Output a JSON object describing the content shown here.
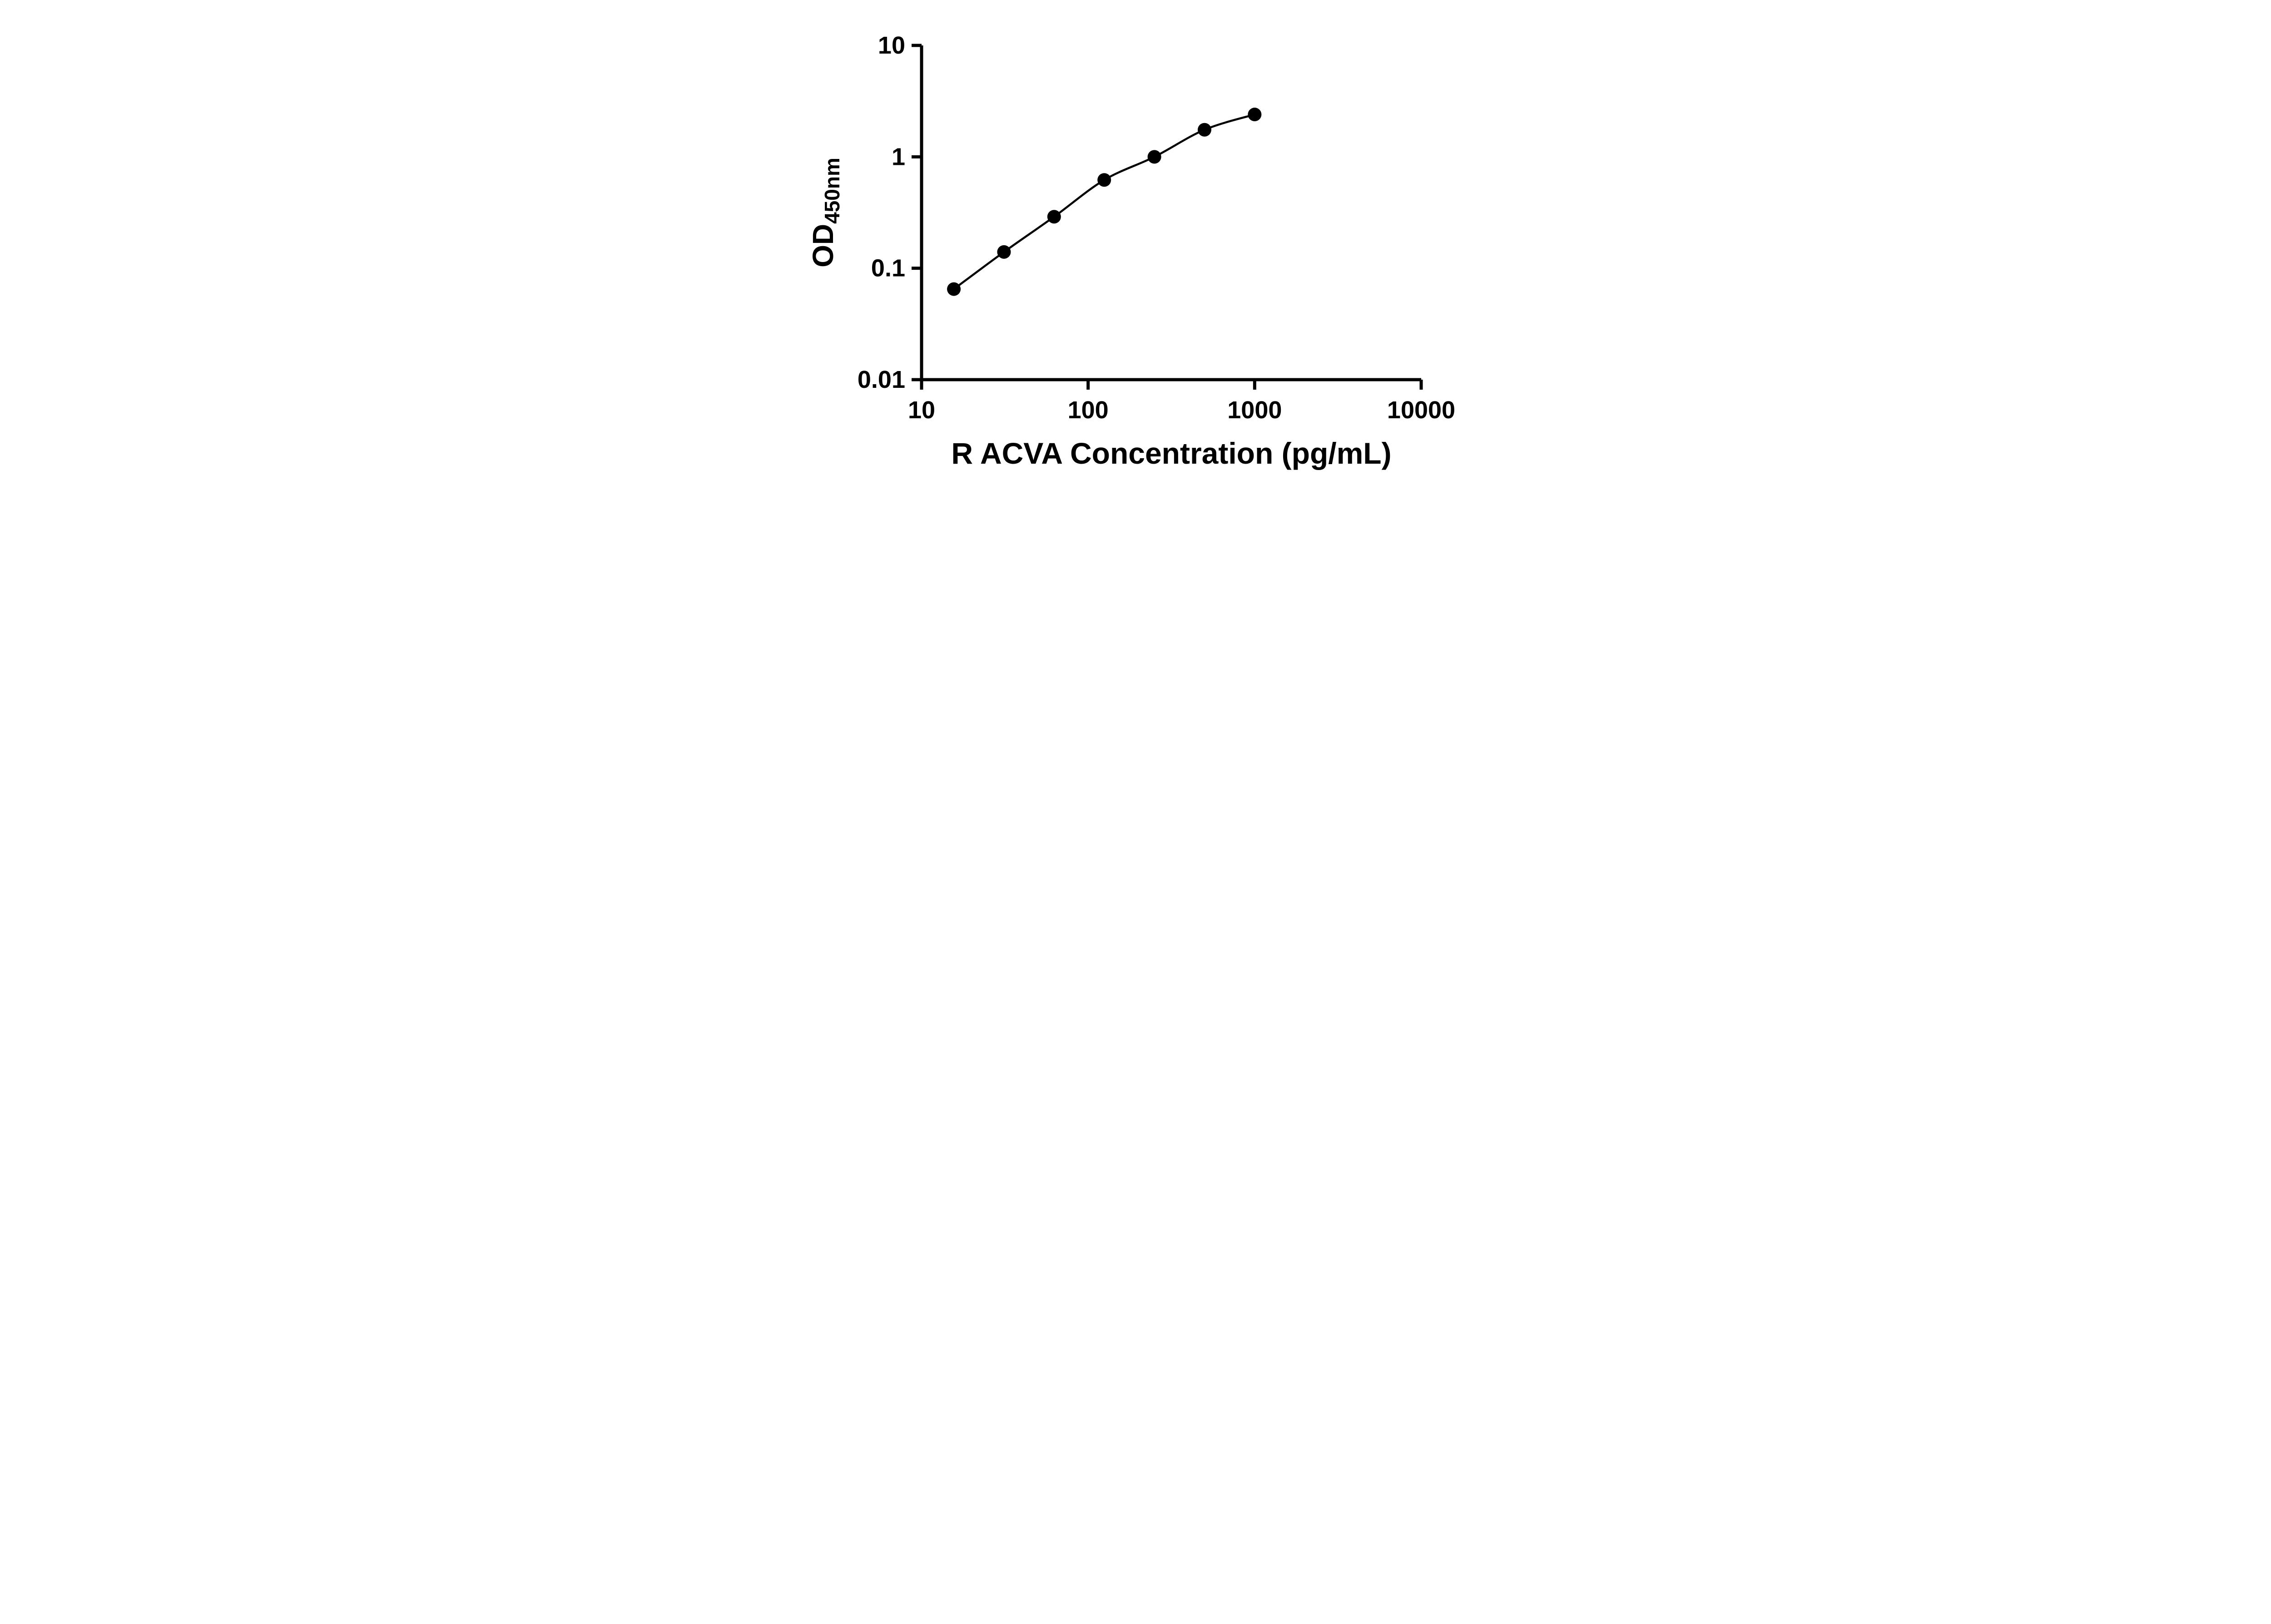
{
  "chart_data": {
    "type": "scatter",
    "subtype": "log-log standard curve with smooth connecting line",
    "title": "",
    "xlabel": "R ACVA Concentration (pg/mL)",
    "ylabel_main": "OD",
    "ylabel_sub": "450nm",
    "xscale": "log",
    "yscale": "log",
    "xlim": [
      10,
      10000
    ],
    "ylim": [
      0.01,
      10
    ],
    "x_ticks": [
      10,
      100,
      1000,
      10000
    ],
    "x_tick_labels": [
      "10",
      "100",
      "1000",
      "10000"
    ],
    "y_ticks": [
      0.01,
      0.1,
      1,
      10
    ],
    "y_tick_labels": [
      "0.01",
      "0.1",
      "1",
      "10"
    ],
    "grid": false,
    "legend": false,
    "colors": {
      "axis": "#000000",
      "marker": "#000000",
      "line": "#000000",
      "background": "#ffffff"
    },
    "series": [
      {
        "name": "standard-curve",
        "x": [
          15.625,
          31.25,
          62.5,
          125,
          250,
          500,
          1000
        ],
        "y": [
          0.065,
          0.14,
          0.29,
          0.62,
          1.0,
          1.75,
          2.4
        ]
      }
    ]
  }
}
